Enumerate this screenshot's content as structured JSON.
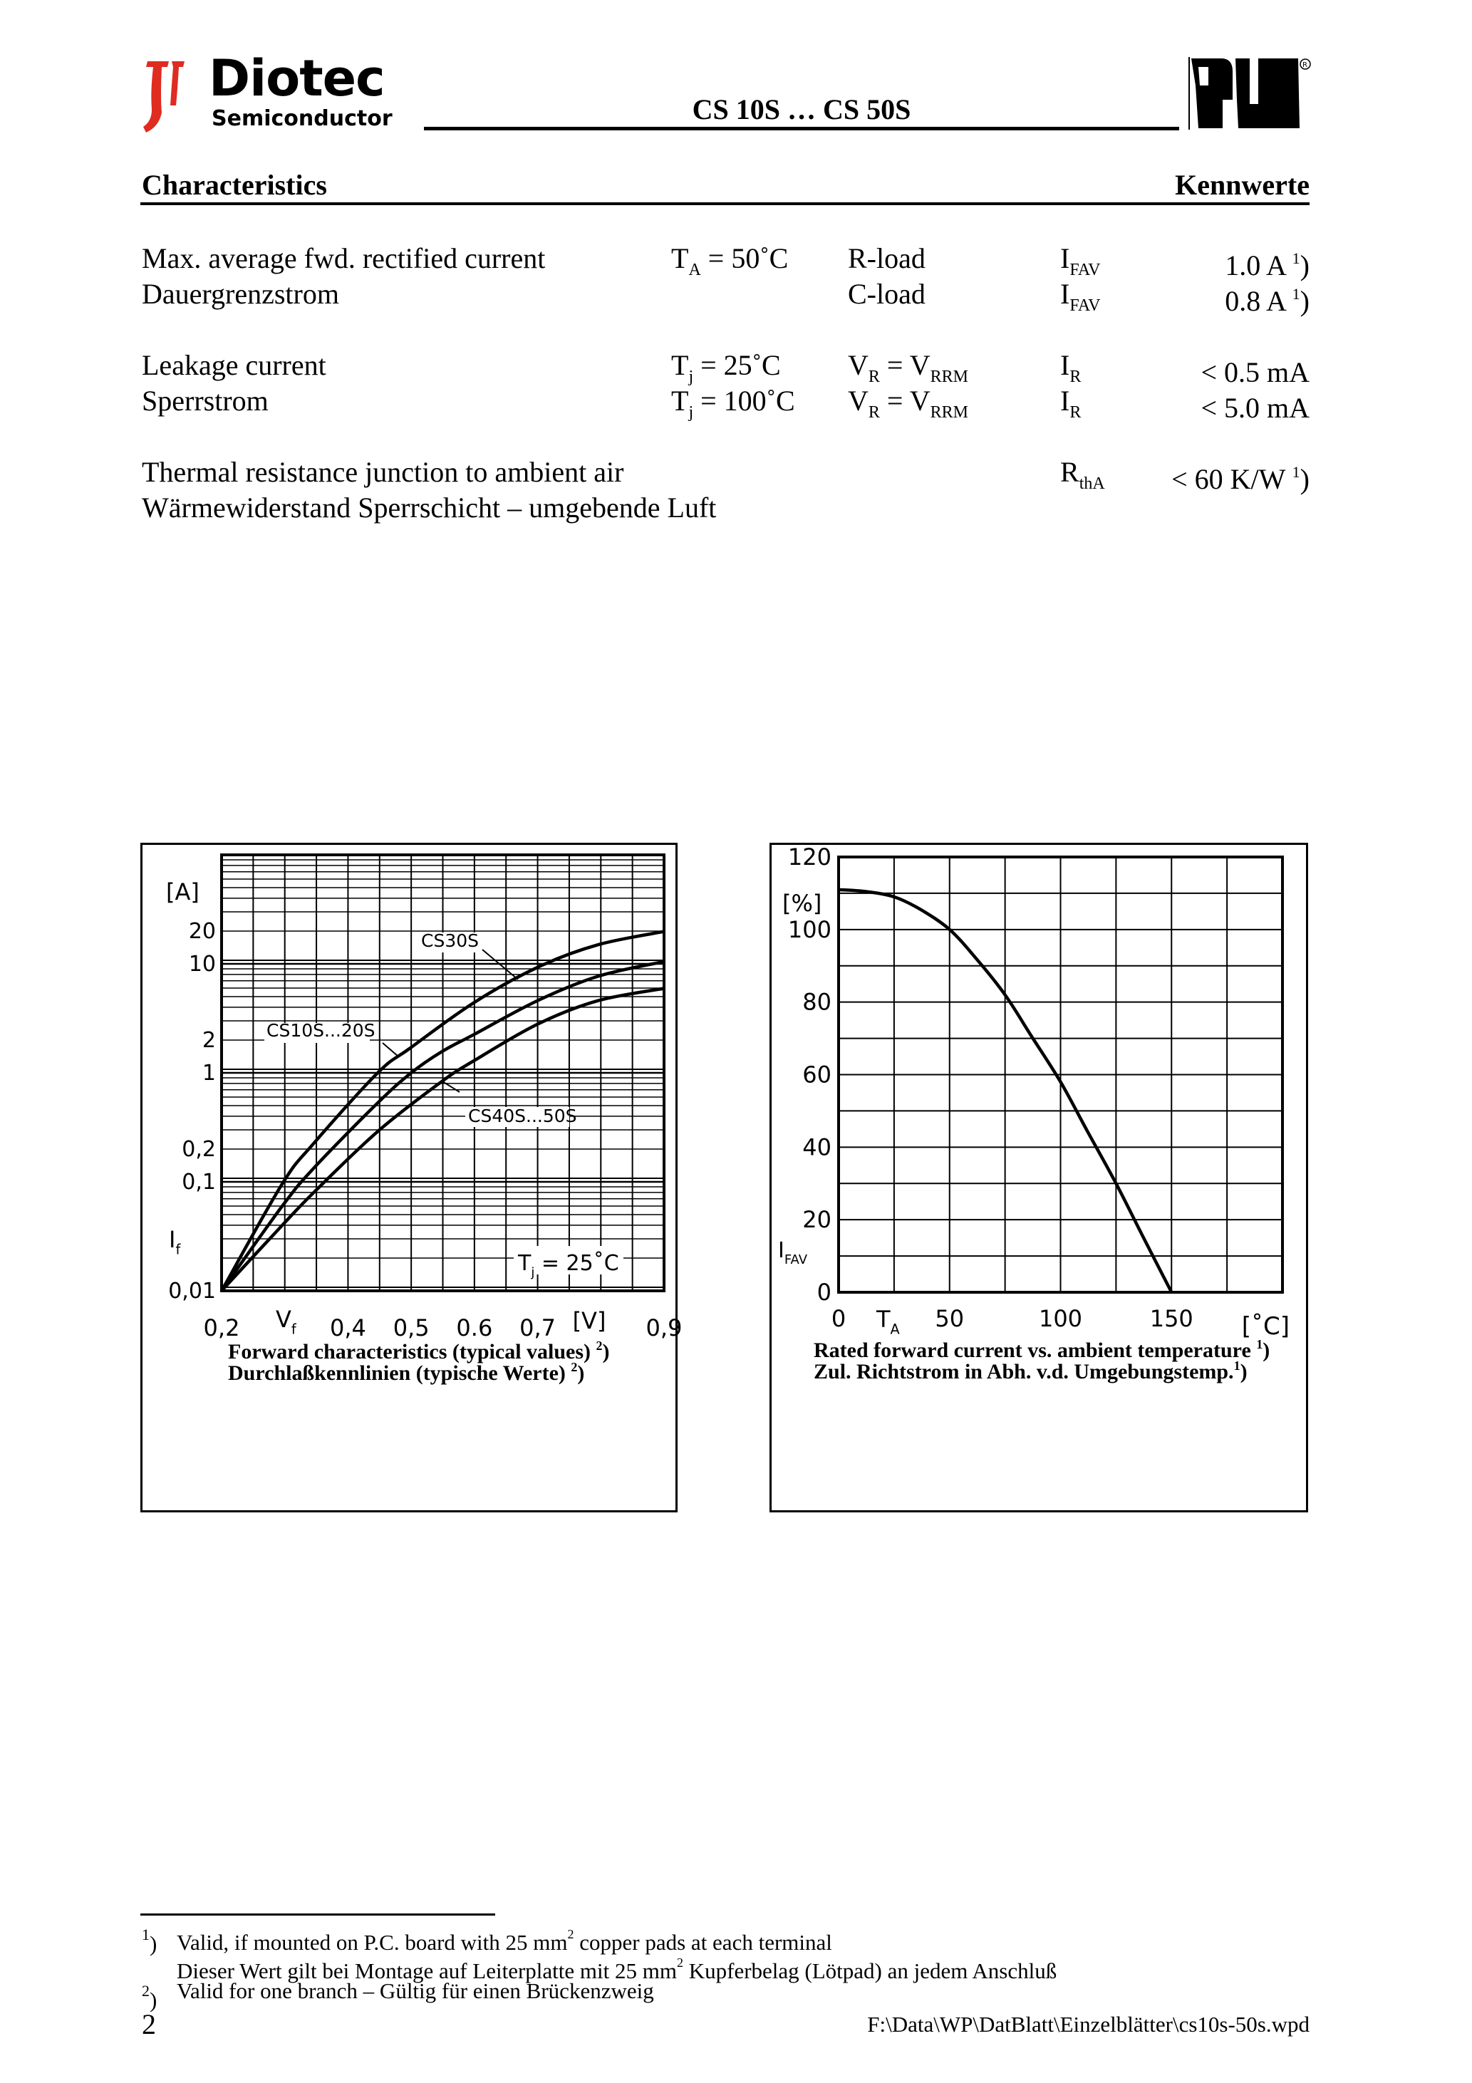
{
  "header": {
    "logo_name": "Diotec",
    "logo_sub": "Semiconductor",
    "title": "CS 10S … CS 50S",
    "cert_mark": "UL recognized mark",
    "brand_color": "#e02b20"
  },
  "section": {
    "left": "Characteristics",
    "right": "Kennwerte"
  },
  "rows": [
    {
      "label": "Max. average fwd. rectified current",
      "cond_main": "T",
      "cond_sub": "A",
      "cond_rest": " = 50˚C",
      "cond2_main": "R-load",
      "cond2_sub": "",
      "cond2_rest": "",
      "sym": "I",
      "sym_sub": "FAV",
      "value": "1.0 A ",
      "note": "1",
      "note_close": ")"
    },
    {
      "label": "Dauergrenzstrom",
      "cond_main": "",
      "cond_sub": "",
      "cond_rest": "",
      "cond2_main": "C-load",
      "cond2_sub": "",
      "cond2_rest": "",
      "sym": "I",
      "sym_sub": "FAV",
      "value": "0.8 A ",
      "note": "1",
      "note_close": ")"
    },
    {
      "label": "Leakage current",
      "cond_main": "T",
      "cond_sub": "j",
      "cond_rest": " = 25˚C",
      "cond2_main": "V",
      "cond2_sub": "R",
      "cond2_rest": " = V",
      "cond2_sub2": "RRM",
      "sym": "I",
      "sym_sub": "R",
      "value": "< 0.5 mA",
      "note": "",
      "note_close": ""
    },
    {
      "label": "Sperrstrom",
      "cond_main": "T",
      "cond_sub": "j",
      "cond_rest": " = 100˚C",
      "cond2_main": "V",
      "cond2_sub": "R",
      "cond2_rest": " = V",
      "cond2_sub2": "RRM",
      "sym": "I",
      "sym_sub": "R",
      "value": "< 5.0 mA",
      "note": "",
      "note_close": ""
    },
    {
      "label": "Thermal resistance junction to ambient air",
      "cond_main": "",
      "cond_sub": "",
      "cond_rest": "",
      "cond2_main": "",
      "cond2_sub": "",
      "cond2_rest": "",
      "sym": "R",
      "sym_sub": "thA",
      "value": "< 60 K/W ",
      "note": "1",
      "note_close": ")"
    },
    {
      "label": "Wärmewiderstand Sperrschicht – umgebende Luft",
      "cond_main": "",
      "cond_sub": "",
      "cond_rest": "",
      "cond2_main": "",
      "cond2_sub": "",
      "cond2_rest": "",
      "sym": "",
      "sym_sub": "",
      "value": "",
      "note": "",
      "note_close": ""
    }
  ],
  "chart_data": [
    {
      "type": "line",
      "yscale": "log",
      "xlim": [
        0.2,
        0.9
      ],
      "ylim": [
        0.01,
        100
      ],
      "grid": true,
      "x_tick_labels": [
        "0,2",
        "0,4",
        "0,5",
        "0.6",
        "0,7",
        "0,9"
      ],
      "x_tick_values": [
        0.2,
        0.4,
        0.5,
        0.6,
        0.7,
        0.9
      ],
      "y_tick_labels": [
        "20",
        "10",
        "2",
        "1",
        "0,2",
        "0,1",
        "0,01"
      ],
      "y_tick_values": [
        20,
        10,
        2,
        1,
        0.2,
        0.1,
        0.01
      ],
      "xlabel": "V",
      "xlabel_sub": "f",
      "xunit": "[V]",
      "ylabel": "I",
      "ylabel_sub": "f",
      "yunit": "[A]",
      "annotation": {
        "main": "T",
        "sub": "j",
        "rest": " = 25˚C"
      },
      "caption": [
        "Forward characteristics (typical values) ",
        "Durchlaßkennlinien (typische Werte) "
      ],
      "caption_note": "2",
      "series": [
        {
          "name": "CS30S",
          "x": [
            0.2,
            0.296,
            0.346,
            0.447,
            0.498,
            0.599,
            0.7,
            0.796,
            0.9
          ],
          "y": [
            0.01,
            0.096,
            0.226,
            1.0,
            1.68,
            4.4,
            9.3,
            15,
            19.8
          ]
        },
        {
          "name": "CS10S...20S",
          "x": [
            0.2,
            0.296,
            0.346,
            0.447,
            0.5,
            0.548,
            0.6,
            0.7,
            0.796,
            0.9
          ],
          "y": [
            0.01,
            0.06,
            0.134,
            0.53,
            1.0,
            1.56,
            2.26,
            4.6,
            7.7,
            10.5
          ]
        },
        {
          "name": "CS40S...50S",
          "x": [
            0.2,
            0.296,
            0.346,
            0.447,
            0.548,
            0.6,
            0.7,
            0.796,
            0.9
          ],
          "y": [
            0.01,
            0.04,
            0.08,
            0.29,
            0.83,
            1.3,
            2.8,
            4.6,
            5.95
          ]
        }
      ]
    },
    {
      "type": "line",
      "xlim": [
        0,
        200
      ],
      "ylim": [
        0,
        120
      ],
      "grid": true,
      "x_tick_labels": [
        "0",
        "50",
        "100",
        "150"
      ],
      "x_tick_values": [
        0,
        50,
        100,
        150
      ],
      "y_tick_labels": [
        "120",
        "100",
        "80",
        "60",
        "40",
        "20",
        "0"
      ],
      "y_tick_values": [
        120,
        100,
        80,
        60,
        40,
        20,
        0
      ],
      "xlabel": "T",
      "xlabel_sub": "A",
      "xunit": "[˚C]",
      "ylabel": "I",
      "ylabel_sub": "FAV",
      "yunit": "[%]",
      "caption": [
        "Rated forward current vs. ambient temperature ",
        "Zul. Richtstrom in Abh. v.d. Umgebungstemp."
      ],
      "caption_note": "1",
      "series": [
        {
          "x": [
            0,
            12,
            25,
            37,
            50,
            62,
            75,
            87,
            100,
            112,
            125,
            137,
            150
          ],
          "y": [
            111,
            110.5,
            109,
            105.5,
            100,
            92,
            82,
            70.5,
            58,
            44.5,
            30,
            15.5,
            0
          ]
        }
      ]
    }
  ],
  "footnotes": {
    "n1": "1",
    "n1_line1a": "Valid, if mounted on P.C. board with 25 mm",
    "n1_line1b": " copper pads at each terminal",
    "n1_line2a": "Dieser Wert gilt bei Montage auf Leiterplatte mit 25 mm",
    "n1_line2b": " Kupferbelag (Lötpad) an jedem Anschluß",
    "sq": "2",
    "n2": "2",
    "n2_line": "Valid for one branch – Gültig für einen Brückenzweig",
    "paren": ")"
  },
  "footer": {
    "page": "2",
    "path": "F:\\Data\\WP\\DatBlatt\\Einzelblätter\\cs10s-50s.wpd"
  }
}
